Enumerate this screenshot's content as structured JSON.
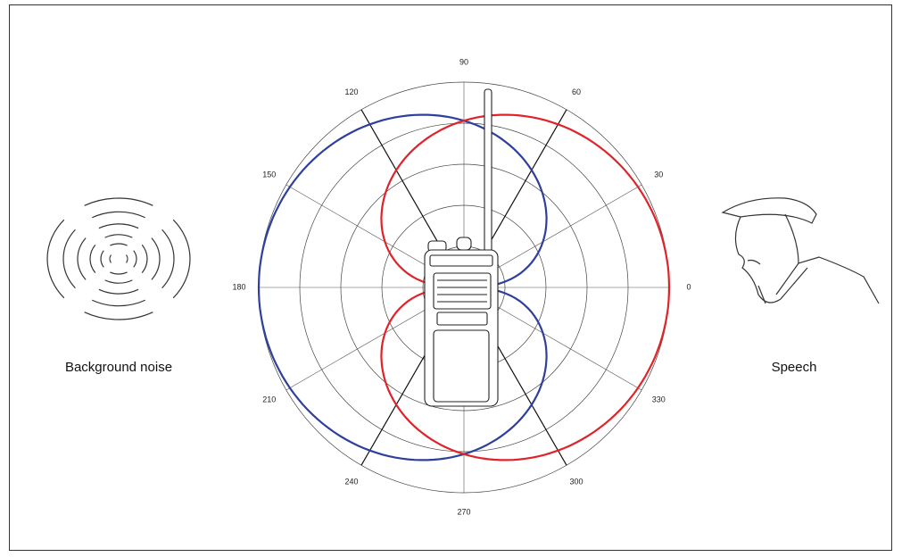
{
  "diagram": {
    "angle_labels": [
      "0",
      "30",
      "60",
      "90",
      "120",
      "150",
      "180",
      "210",
      "240",
      "270",
      "300",
      "330"
    ],
    "left_caption": "Background noise",
    "right_caption": "Speech"
  }
}
